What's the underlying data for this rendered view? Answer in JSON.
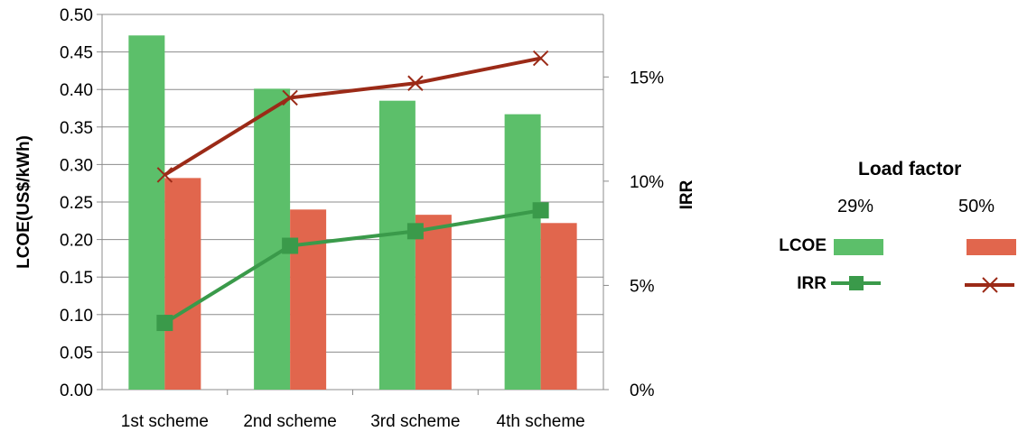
{
  "chart_data": {
    "type": "bar",
    "categories": [
      "1st scheme",
      "2nd scheme",
      "3rd scheme",
      "4th scheme"
    ],
    "series": [
      {
        "name": "LCOE 29%",
        "kind": "bar",
        "axis": "left",
        "color": "#5cbf6a",
        "values": [
          0.472,
          0.401,
          0.385,
          0.367
        ]
      },
      {
        "name": "LCOE 50%",
        "kind": "bar",
        "axis": "left",
        "color": "#e1664d",
        "values": [
          0.282,
          0.24,
          0.233,
          0.222
        ]
      },
      {
        "name": "IRR 29%",
        "kind": "line",
        "axis": "right",
        "color": "#3a9a4a",
        "marker": "square",
        "values": [
          0.032,
          0.069,
          0.076,
          0.086
        ]
      },
      {
        "name": "IRR 50%",
        "kind": "line",
        "axis": "right",
        "color": "#9b2a17",
        "marker": "x",
        "values": [
          0.103,
          0.14,
          0.147,
          0.159
        ]
      }
    ],
    "ylabel": "LCOE(US$/kWh)",
    "y2label": "IRR",
    "ylim": [
      0,
      0.5
    ],
    "y2lim": [
      0,
      0.18
    ],
    "yticks": [
      "0.00",
      "0.05",
      "0.10",
      "0.15",
      "0.20",
      "0.25",
      "0.30",
      "0.35",
      "0.40",
      "0.45",
      "0.50"
    ],
    "y2ticks": [
      "0%",
      "5%",
      "10%",
      "15%"
    ],
    "grid": true,
    "legend": {
      "title": "Load factor",
      "columns": [
        "29%",
        "50%"
      ],
      "rows": [
        "LCOE",
        "IRR"
      ]
    }
  }
}
